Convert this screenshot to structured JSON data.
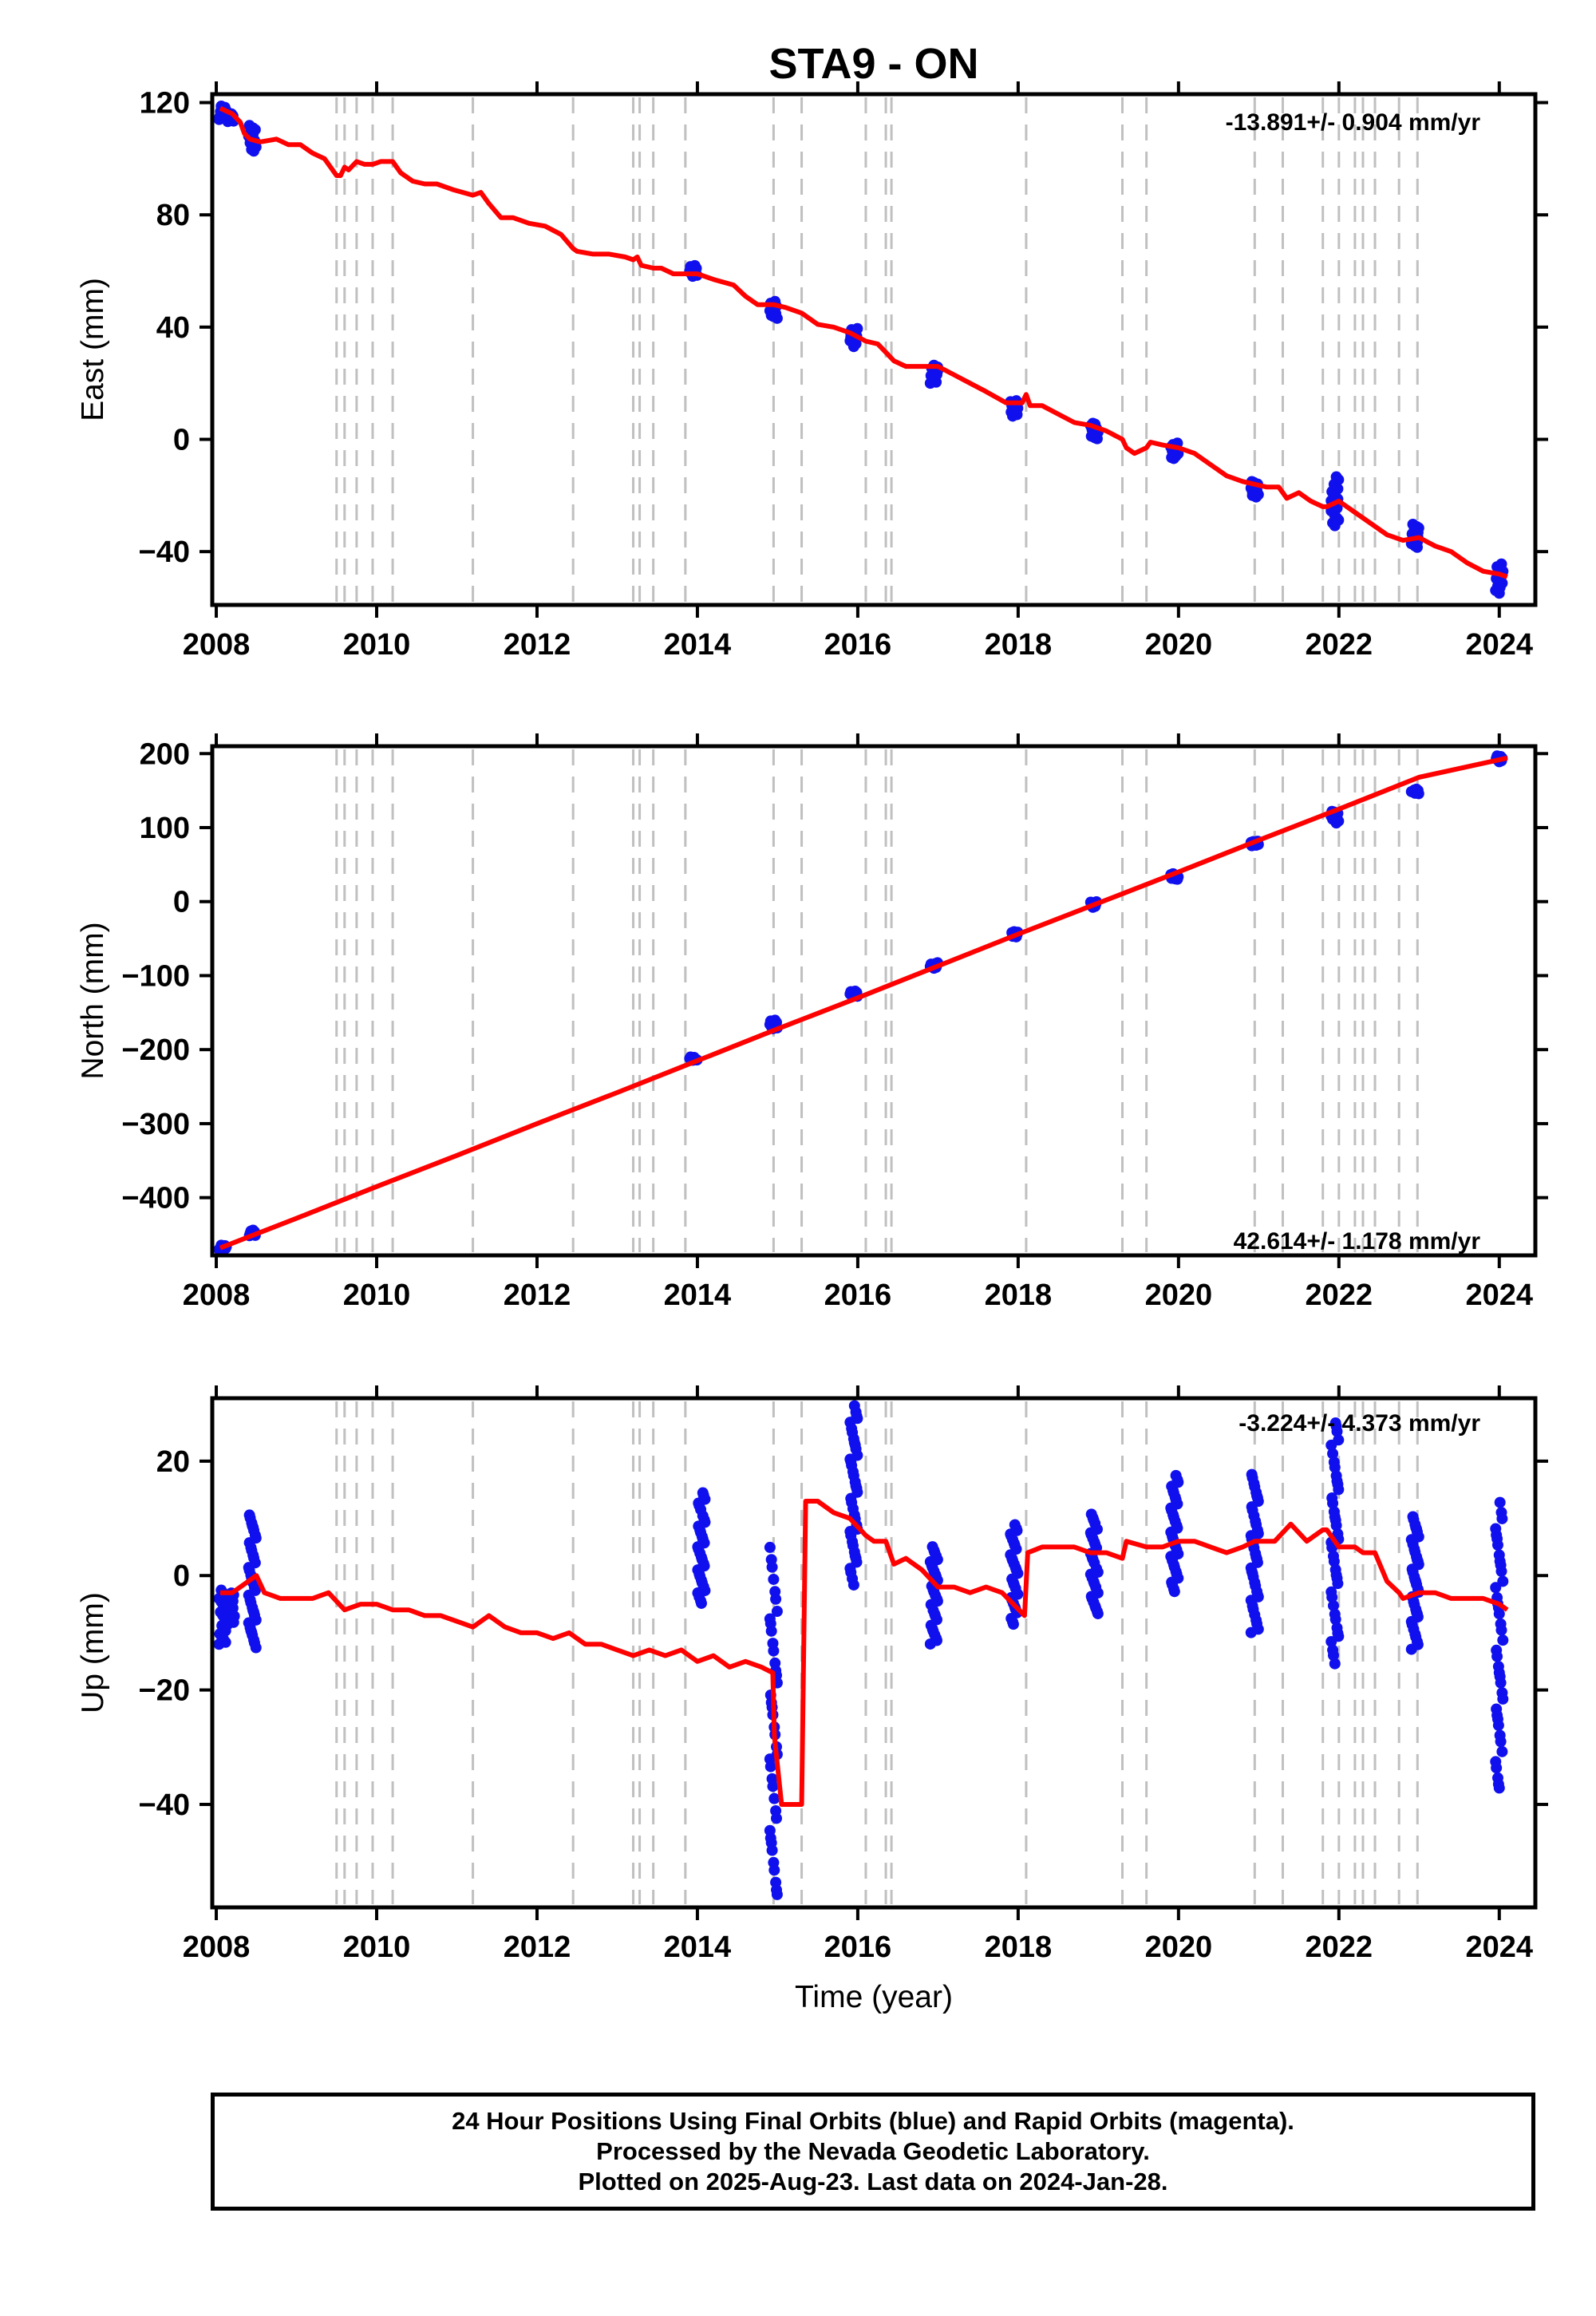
{
  "title": "STA9 - ON",
  "xlabel": "Time (year)",
  "footer": {
    "line1": "24 Hour Positions Using Final Orbits (blue) and Rapid Orbits (magenta).",
    "line2": "Processed by the Nevada Geodetic Laboratory.",
    "line3": "Plotted on 2025-Aug-23. Last data on 2024-Jan-28."
  },
  "colors": {
    "data": "#1010ee",
    "model": "#ff0000",
    "steps": "#c0c0c0",
    "axes": "#000000"
  },
  "chart_data": [
    {
      "type": "scatter",
      "ylabel": "East (mm)",
      "rate": "-13.891+/- 0.904 mm/yr",
      "xlim": [
        2007.95,
        2024.45
      ],
      "ylim": [
        -59,
        123
      ],
      "xticks": [
        "2008",
        "2010",
        "2012",
        "2014",
        "2016",
        "2018",
        "2020",
        "2022",
        "2024"
      ],
      "yticks": [
        -40,
        0,
        40,
        80,
        120
      ],
      "grid": false,
      "steps": [
        2009.5,
        2009.6,
        2009.75,
        2009.95,
        2010.2,
        2011.2,
        2012.45,
        2013.2,
        2013.28,
        2013.45,
        2013.85,
        2014.95,
        2015.3,
        2016.1,
        2016.35,
        2016.42,
        2018.1,
        2019.3,
        2019.6,
        2020.95,
        2021.3,
        2021.8,
        2022.0,
        2022.2,
        2022.3,
        2022.45,
        2022.75,
        2022.98
      ],
      "model": {
        "x": [
          2008.05,
          2008.2,
          2008.3,
          2008.35,
          2008.42,
          2008.55,
          2008.75,
          2008.9,
          2009.05,
          2009.2,
          2009.35,
          2009.5,
          2009.55,
          2009.6,
          2009.65,
          2009.75,
          2009.85,
          2009.95,
          2010.05,
          2010.2,
          2010.3,
          2010.45,
          2010.6,
          2010.75,
          2010.95,
          2011.2,
          2011.3,
          2011.4,
          2011.55,
          2011.7,
          2011.9,
          2012.1,
          2012.3,
          2012.45,
          2012.5,
          2012.7,
          2012.9,
          2013.1,
          2013.2,
          2013.25,
          2013.3,
          2013.45,
          2013.55,
          2013.7,
          2013.85,
          2014.0,
          2014.2,
          2014.45,
          2014.6,
          2014.75,
          2014.95,
          2015.1,
          2015.3,
          2015.35,
          2015.5,
          2015.7,
          2015.9,
          2016.1,
          2016.25,
          2016.35,
          2016.45,
          2016.6,
          2016.8,
          2017.0,
          2017.2,
          2017.4,
          2017.6,
          2017.85,
          2018.05,
          2018.1,
          2018.15,
          2018.3,
          2018.5,
          2018.7,
          2018.9,
          2019.1,
          2019.3,
          2019.35,
          2019.45,
          2019.6,
          2019.65,
          2019.8,
          2020.0,
          2020.2,
          2020.4,
          2020.6,
          2020.8,
          2020.95,
          2021.1,
          2021.25,
          2021.3,
          2021.35,
          2021.5,
          2021.65,
          2021.8,
          2021.85,
          2022.0,
          2022.2,
          2022.4,
          2022.6,
          2022.8,
          2023.0,
          2023.2,
          2023.4,
          2023.6,
          2023.8,
          2024.0,
          2024.1
        ],
        "y": [
          118,
          116,
          113,
          109,
          107,
          106,
          107,
          105,
          105,
          102,
          100,
          94,
          94,
          97,
          96,
          99,
          98,
          98,
          99,
          99,
          95,
          92,
          91,
          91,
          89,
          87,
          88,
          84,
          79,
          79,
          77,
          76,
          73,
          68,
          67,
          66,
          66,
          65,
          64,
          65,
          62,
          61,
          61,
          59,
          59,
          59,
          57,
          55,
          51,
          48,
          48,
          47,
          45,
          44,
          41,
          40,
          38,
          35,
          34,
          31,
          28,
          26,
          26,
          26,
          23,
          20,
          17,
          13,
          13,
          16,
          12,
          12,
          9,
          6,
          5,
          3,
          0,
          -3,
          -5,
          -3,
          -1,
          -2,
          -3,
          -5,
          -9,
          -13,
          -15,
          -16,
          -17,
          -17,
          -19,
          -21,
          -19,
          -22,
          -24,
          -24,
          -22,
          -26,
          -30,
          -34,
          -36,
          -35,
          -38,
          -40,
          -44,
          -47,
          -48,
          -49
        ]
      },
      "clusters": [
        {
          "x": 2008.08,
          "ymin": 114,
          "ymax": 119
        },
        {
          "x": 2008.18,
          "ymin": 113,
          "ymax": 116
        },
        {
          "x": 2008.45,
          "ymin": 102,
          "ymax": 112
        },
        {
          "x": 2013.95,
          "ymin": 58,
          "ymax": 62
        },
        {
          "x": 2014.95,
          "ymin": 43,
          "ymax": 50
        },
        {
          "x": 2015.95,
          "ymin": 33,
          "ymax": 40
        },
        {
          "x": 2016.95,
          "ymin": 20,
          "ymax": 27
        },
        {
          "x": 2017.95,
          "ymin": 8,
          "ymax": 14
        },
        {
          "x": 2018.95,
          "ymin": 0,
          "ymax": 6
        },
        {
          "x": 2019.95,
          "ymin": -7,
          "ymax": -1
        },
        {
          "x": 2020.95,
          "ymin": -21,
          "ymax": -15
        },
        {
          "x": 2021.95,
          "ymin": -31,
          "ymax": -13
        },
        {
          "x": 2022.95,
          "ymin": -39,
          "ymax": -30
        },
        {
          "x": 2024.0,
          "ymin": -55,
          "ymax": -44
        }
      ]
    },
    {
      "type": "scatter",
      "ylabel": "North (mm)",
      "rate": "42.614+/- 1.178 mm/yr",
      "xlim": [
        2007.95,
        2024.45
      ],
      "ylim": [
        -478,
        210
      ],
      "xticks": [
        "2008",
        "2010",
        "2012",
        "2014",
        "2016",
        "2018",
        "2020",
        "2022",
        "2024"
      ],
      "yticks": [
        -400,
        -300,
        -200,
        -100,
        0,
        100,
        200
      ],
      "grid": false,
      "steps": [
        2009.5,
        2009.6,
        2009.75,
        2009.95,
        2010.2,
        2011.2,
        2012.45,
        2013.2,
        2013.28,
        2013.45,
        2013.85,
        2014.95,
        2015.3,
        2016.1,
        2016.35,
        2016.42,
        2018.1,
        2019.3,
        2019.6,
        2020.95,
        2021.3,
        2021.8,
        2022.0,
        2022.2,
        2022.3,
        2022.45,
        2022.75,
        2022.98
      ],
      "model": {
        "x": [
          2008.05,
          2009.0,
          2010.0,
          2011.0,
          2012.0,
          2013.0,
          2014.0,
          2015.0,
          2016.0,
          2017.0,
          2018.0,
          2019.0,
          2020.0,
          2021.0,
          2022.0,
          2023.0,
          2024.1
        ],
        "y": [
          -468,
          -428,
          -385,
          -343,
          -300,
          -258,
          -215,
          -172,
          -130,
          -87,
          -44,
          -2,
          40,
          83,
          125,
          168,
          194
        ]
      },
      "clusters": [
        {
          "x": 2008.08,
          "ymin": -470,
          "ymax": -464
        },
        {
          "x": 2008.45,
          "ymin": -452,
          "ymax": -444
        },
        {
          "x": 2013.95,
          "ymin": -215,
          "ymax": -210
        },
        {
          "x": 2014.95,
          "ymin": -172,
          "ymax": -160
        },
        {
          "x": 2015.95,
          "ymin": -128,
          "ymax": -120
        },
        {
          "x": 2016.95,
          "ymin": -90,
          "ymax": -82
        },
        {
          "x": 2017.95,
          "ymin": -48,
          "ymax": -40
        },
        {
          "x": 2018.95,
          "ymin": -8,
          "ymax": 0
        },
        {
          "x": 2019.95,
          "ymin": 30,
          "ymax": 38
        },
        {
          "x": 2020.95,
          "ymin": 75,
          "ymax": 82
        },
        {
          "x": 2021.95,
          "ymin": 105,
          "ymax": 122
        },
        {
          "x": 2022.95,
          "ymin": 145,
          "ymax": 152
        },
        {
          "x": 2024.0,
          "ymin": 188,
          "ymax": 197
        }
      ]
    },
    {
      "type": "scatter",
      "ylabel": "Up (mm)",
      "rate": "-3.224+/- 4.373 mm/yr",
      "xlim": [
        2007.95,
        2024.45
      ],
      "ylim": [
        -58,
        31
      ],
      "xticks": [
        "2008",
        "2010",
        "2012",
        "2014",
        "2016",
        "2018",
        "2020",
        "2022",
        "2024"
      ],
      "yticks": [
        -40,
        -20,
        0,
        20
      ],
      "grid": false,
      "steps": [
        2009.5,
        2009.6,
        2009.75,
        2009.95,
        2010.2,
        2011.2,
        2012.45,
        2013.2,
        2013.28,
        2013.45,
        2013.85,
        2014.95,
        2015.3,
        2016.1,
        2016.35,
        2016.42,
        2018.1,
        2019.3,
        2019.6,
        2020.95,
        2021.3,
        2021.8,
        2022.0,
        2022.2,
        2022.3,
        2022.45,
        2022.75,
        2022.98
      ],
      "model": {
        "x": [
          2008.05,
          2008.2,
          2008.4,
          2008.5,
          2008.6,
          2008.8,
          2009.0,
          2009.2,
          2009.4,
          2009.6,
          2009.8,
          2010.0,
          2010.2,
          2010.4,
          2010.6,
          2010.8,
          2011.0,
          2011.2,
          2011.4,
          2011.6,
          2011.8,
          2012.0,
          2012.2,
          2012.4,
          2012.6,
          2012.8,
          2013.0,
          2013.2,
          2013.4,
          2013.6,
          2013.8,
          2014.0,
          2014.2,
          2014.4,
          2014.6,
          2014.8,
          2014.94,
          2014.96,
          2015.05,
          2015.28,
          2015.3,
          2015.35,
          2015.5,
          2015.7,
          2015.9,
          2016.1,
          2016.2,
          2016.35,
          2016.45,
          2016.6,
          2016.8,
          2017.0,
          2017.2,
          2017.4,
          2017.6,
          2017.8,
          2018.08,
          2018.12,
          2018.3,
          2018.5,
          2018.7,
          2018.9,
          2019.1,
          2019.3,
          2019.35,
          2019.6,
          2019.65,
          2019.8,
          2020.0,
          2020.2,
          2020.4,
          2020.6,
          2020.8,
          2020.95,
          2021.0,
          2021.2,
          2021.4,
          2021.6,
          2021.8,
          2021.85,
          2022.0,
          2022.2,
          2022.3,
          2022.45,
          2022.6,
          2022.75,
          2022.8,
          2023.0,
          2023.2,
          2023.4,
          2023.6,
          2023.8,
          2024.0,
          2024.1
        ],
        "y": [
          -3,
          -3,
          -1,
          0,
          -3,
          -4,
          -4,
          -4,
          -3,
          -6,
          -5,
          -5,
          -6,
          -6,
          -7,
          -7,
          -8,
          -9,
          -7,
          -9,
          -10,
          -10,
          -11,
          -10,
          -12,
          -12,
          -13,
          -14,
          -13,
          -14,
          -13,
          -15,
          -14,
          -16,
          -15,
          -16,
          -17,
          -28,
          -40,
          -40,
          -40,
          13,
          13,
          11,
          10,
          7,
          6,
          6,
          2,
          3,
          1,
          -2,
          -2,
          -3,
          -2,
          -3,
          -7,
          4,
          5,
          5,
          5,
          4,
          4,
          3,
          6,
          5,
          5,
          5,
          6,
          6,
          5,
          4,
          5,
          6,
          6,
          6,
          9,
          6,
          8,
          8,
          5,
          5,
          4,
          4,
          -1,
          -3,
          -4,
          -3,
          -3,
          -4,
          -4,
          -4,
          -5,
          -6
        ]
      },
      "clusters": [
        {
          "x": 2008.08,
          "ymin": -12,
          "ymax": -2
        },
        {
          "x": 2008.18,
          "ymin": -9,
          "ymax": -3
        },
        {
          "x": 2008.45,
          "ymin": -13,
          "ymax": 11
        },
        {
          "x": 2014.05,
          "ymin": -5,
          "ymax": 15
        },
        {
          "x": 2014.95,
          "ymin": -57,
          "ymax": 5
        },
        {
          "x": 2015.95,
          "ymin": -2,
          "ymax": 30
        },
        {
          "x": 2016.95,
          "ymin": -12,
          "ymax": 6
        },
        {
          "x": 2017.95,
          "ymin": -9,
          "ymax": 9
        },
        {
          "x": 2018.95,
          "ymin": -7,
          "ymax": 11
        },
        {
          "x": 2019.95,
          "ymin": -3,
          "ymax": 18
        },
        {
          "x": 2020.95,
          "ymin": -10,
          "ymax": 18
        },
        {
          "x": 2021.95,
          "ymin": -16,
          "ymax": 27
        },
        {
          "x": 2022.95,
          "ymin": -13,
          "ymax": 11
        },
        {
          "x": 2024.0,
          "ymin": -38,
          "ymax": 13
        }
      ]
    }
  ]
}
